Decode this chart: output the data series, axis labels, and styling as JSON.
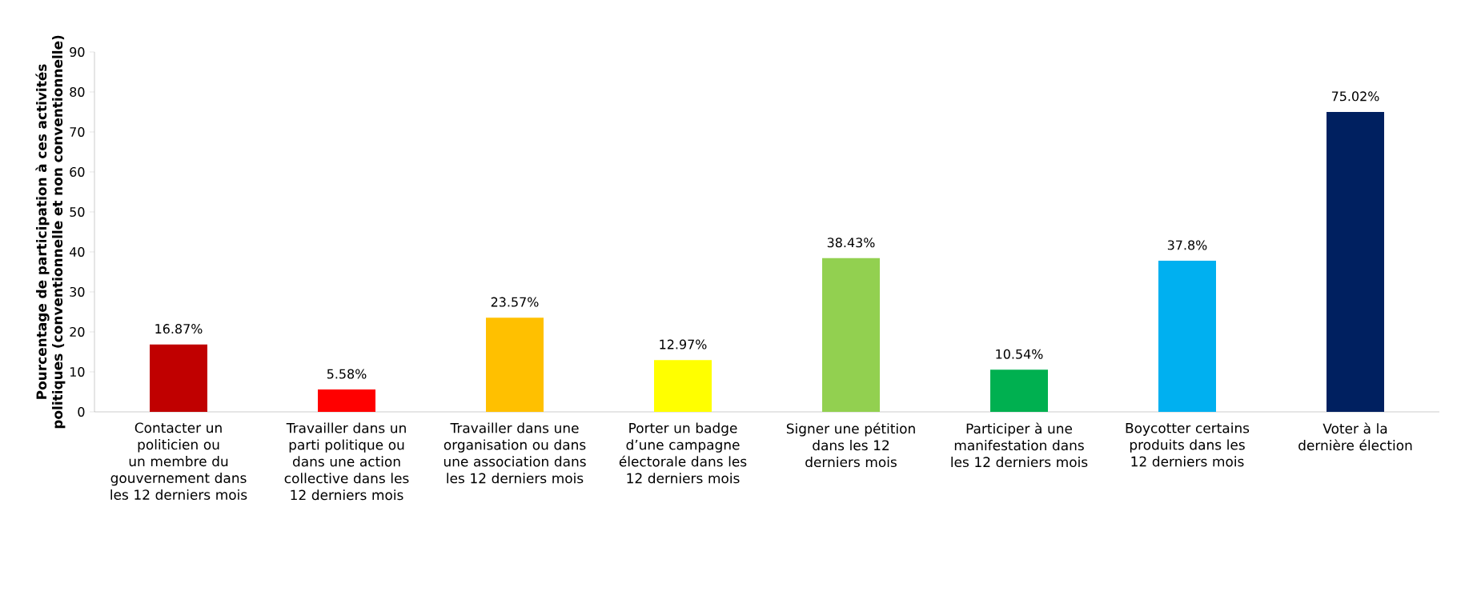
{
  "chart_data": {
    "type": "bar",
    "ylabel": "Pourcentage de participation à ces activités politiques (conventionnelle et non conventionnelle)",
    "categories": [
      "Contacter un politicien ou un membre du gouvernement dans les 12 derniers mois",
      "Travailler dans un parti politique ou dans une action collective dans les 12 derniers mois",
      "Travailler dans une organisation ou dans une association dans les 12 derniers mois",
      "Porter un badge d’une campagne électorale dans les 12 derniers mois",
      "Signer une pétition dans les 12 derniers mois",
      "Participer à une manifestation dans les 12 derniers mois",
      "Boycotter certains produits dans les 12 derniers mois",
      "Voter à la dernière élection"
    ],
    "values": [
      16.87,
      5.58,
      23.57,
      12.97,
      38.43,
      10.54,
      37.8,
      75.02
    ],
    "colors": [
      "#c00000",
      "#ff0000",
      "#ffc000",
      "#ffff00",
      "#92d050",
      "#00b050",
      "#00b0f0",
      "#002060"
    ],
    "value_labels": [
      "16.87%",
      "5.58%",
      "23.57%",
      "12.97%",
      "38.43%",
      "10.54%",
      "37.8%",
      "75.02%"
    ],
    "ylim": [
      0,
      90
    ],
    "yticks": [
      0,
      10,
      20,
      30,
      40,
      50,
      60,
      70,
      80,
      90
    ],
    "grid": false
  }
}
